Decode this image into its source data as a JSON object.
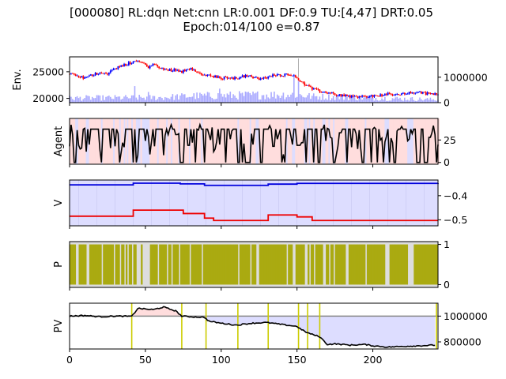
{
  "chart_data": {
    "type": "line",
    "title_line1": "[000080] RL:dqn Net:cnn LR:0.001 DF:0.9 TU:[4,47] DRT:0.05",
    "title_line2": "Epoch:014/100 e=0.87",
    "xlim": [
      0,
      243
    ],
    "x_ticks": [
      "0",
      "50",
      "100",
      "150",
      "200"
    ],
    "x_tick_values": [
      0,
      50,
      100,
      150,
      200
    ],
    "panels": [
      {
        "name": "env",
        "ylabel": "Env.",
        "left_ticks": [
          "20000",
          "25000"
        ],
        "left_tick_values": [
          20000,
          25000
        ],
        "left_ylim": [
          19200,
          27800
        ],
        "right_ticks": [
          "0",
          "1000000"
        ],
        "right_tick_values": [
          0,
          1000000
        ],
        "right_ylim": [
          0,
          1800000
        ],
        "price_anchors": [
          [
            0,
            24600
          ],
          [
            5,
            24200
          ],
          [
            10,
            23800
          ],
          [
            15,
            24400
          ],
          [
            20,
            24900
          ],
          [
            25,
            24700
          ],
          [
            30,
            25600
          ],
          [
            35,
            26100
          ],
          [
            40,
            26700
          ],
          [
            44,
            27100
          ],
          [
            48,
            26600
          ],
          [
            52,
            25900
          ],
          [
            56,
            26400
          ],
          [
            60,
            25600
          ],
          [
            65,
            25300
          ],
          [
            70,
            25400
          ],
          [
            74,
            25000
          ],
          [
            78,
            25700
          ],
          [
            82,
            25500
          ],
          [
            86,
            24500
          ],
          [
            90,
            24400
          ],
          [
            95,
            24100
          ],
          [
            100,
            23800
          ],
          [
            105,
            24000
          ],
          [
            110,
            23700
          ],
          [
            115,
            24200
          ],
          [
            120,
            24100
          ],
          [
            125,
            23600
          ],
          [
            130,
            23900
          ],
          [
            135,
            24400
          ],
          [
            140,
            24400
          ],
          [
            145,
            24600
          ],
          [
            150,
            23800
          ],
          [
            155,
            22700
          ],
          [
            160,
            21800
          ],
          [
            165,
            21300
          ],
          [
            170,
            21100
          ],
          [
            175,
            20800
          ],
          [
            180,
            20600
          ],
          [
            185,
            20400
          ],
          [
            190,
            20300
          ],
          [
            195,
            20300
          ],
          [
            200,
            20500
          ],
          [
            205,
            20600
          ],
          [
            210,
            20800
          ],
          [
            215,
            20600
          ],
          [
            220,
            20900
          ],
          [
            225,
            21000
          ],
          [
            230,
            21200
          ],
          [
            235,
            20900
          ],
          [
            240,
            20800
          ],
          [
            243,
            20800
          ]
        ],
        "volume_profile": [
          [
            0,
            180000
          ],
          [
            60,
            200000
          ],
          [
            80,
            260000
          ],
          [
            150,
            320000
          ],
          [
            160,
            240000
          ],
          [
            243,
            120000
          ]
        ],
        "volume_spikes": [
          [
            43,
            650000
          ],
          [
            52,
            420000
          ],
          [
            99,
            550000
          ],
          [
            148,
            1050000
          ],
          [
            151,
            850000
          ]
        ],
        "colors": {
          "up": "#0000ff",
          "down": "#ff0000",
          "volume": "#aaaaff"
        }
      },
      {
        "name": "agent",
        "ylabel": "Agent",
        "right_ticks": [
          "0",
          "25"
        ],
        "right_tick_values": [
          0,
          25
        ],
        "ylim": [
          -2,
          49
        ],
        "line_color": "#000000",
        "shade_colors": {
          "hold": "#ffdddd",
          "alt": "#ddddff"
        }
      },
      {
        "name": "v",
        "ylabel": "V",
        "right_ticks": [
          "−0.4",
          "−0.5"
        ],
        "right_tick_values": [
          -0.4,
          -0.5
        ],
        "ylim": [
          -0.525,
          -0.335
        ],
        "series": [
          {
            "steps": [
              [
                0,
                -0.355
              ],
              [
                42,
                -0.348
              ],
              [
                73,
                -0.351
              ],
              [
                89,
                -0.357
              ],
              [
                131,
                -0.352
              ],
              [
                150,
                -0.349
              ],
              [
                243,
                -0.348
              ]
            ],
            "color": "#0000dd"
          },
          {
            "steps": [
              [
                0,
                -0.485
              ],
              [
                42,
                -0.46
              ],
              [
                75,
                -0.474
              ],
              [
                89,
                -0.493
              ],
              [
                95,
                -0.503
              ],
              [
                131,
                -0.48
              ],
              [
                150,
                -0.488
              ],
              [
                160,
                -0.503
              ],
              [
                243,
                -0.503
              ]
            ],
            "color": "#ee0000"
          }
        ],
        "fill_color": "#ddddff"
      },
      {
        "name": "p",
        "ylabel": "P",
        "right_ticks": [
          "0",
          "1"
        ],
        "right_tick_values": [
          0,
          1
        ],
        "ylim": [
          -0.07,
          1.07
        ],
        "bar_color": "#aaaa11",
        "gap_color": "#dddddd"
      },
      {
        "name": "pv",
        "ylabel": "PV",
        "right_ticks": [
          "800000",
          "1000000"
        ],
        "right_tick_values": [
          800000,
          1000000
        ],
        "ylim": [
          745000,
          1100000
        ],
        "baseline": 1000000,
        "pv_anchors": [
          [
            0,
            1000000
          ],
          [
            10,
            1005000
          ],
          [
            20,
            995000
          ],
          [
            30,
            1000000
          ],
          [
            41,
            998000
          ],
          [
            45,
            1060000
          ],
          [
            55,
            1050000
          ],
          [
            62,
            1070000
          ],
          [
            70,
            1040000
          ],
          [
            74,
            1000000
          ],
          [
            80,
            995000
          ],
          [
            89,
            990000
          ],
          [
            92,
            960000
          ],
          [
            100,
            945000
          ],
          [
            110,
            930000
          ],
          [
            120,
            945000
          ],
          [
            130,
            950000
          ],
          [
            140,
            935000
          ],
          [
            150,
            920000
          ],
          [
            153,
            895000
          ],
          [
            157,
            870000
          ],
          [
            165,
            840000
          ],
          [
            170,
            780000
          ],
          [
            175,
            785000
          ],
          [
            185,
            775000
          ],
          [
            195,
            780000
          ],
          [
            200,
            770000
          ],
          [
            210,
            760000
          ],
          [
            220,
            765000
          ],
          [
            230,
            770000
          ],
          [
            241,
            775000
          ]
        ],
        "markers": [
          41,
          74,
          90,
          111,
          131,
          151,
          157,
          165,
          242
        ],
        "colors": {
          "line": "#000000",
          "baseline": "#888888",
          "gain": "#ffdddd",
          "loss": "#ddddff",
          "marker": "#cccc00"
        }
      }
    ]
  }
}
